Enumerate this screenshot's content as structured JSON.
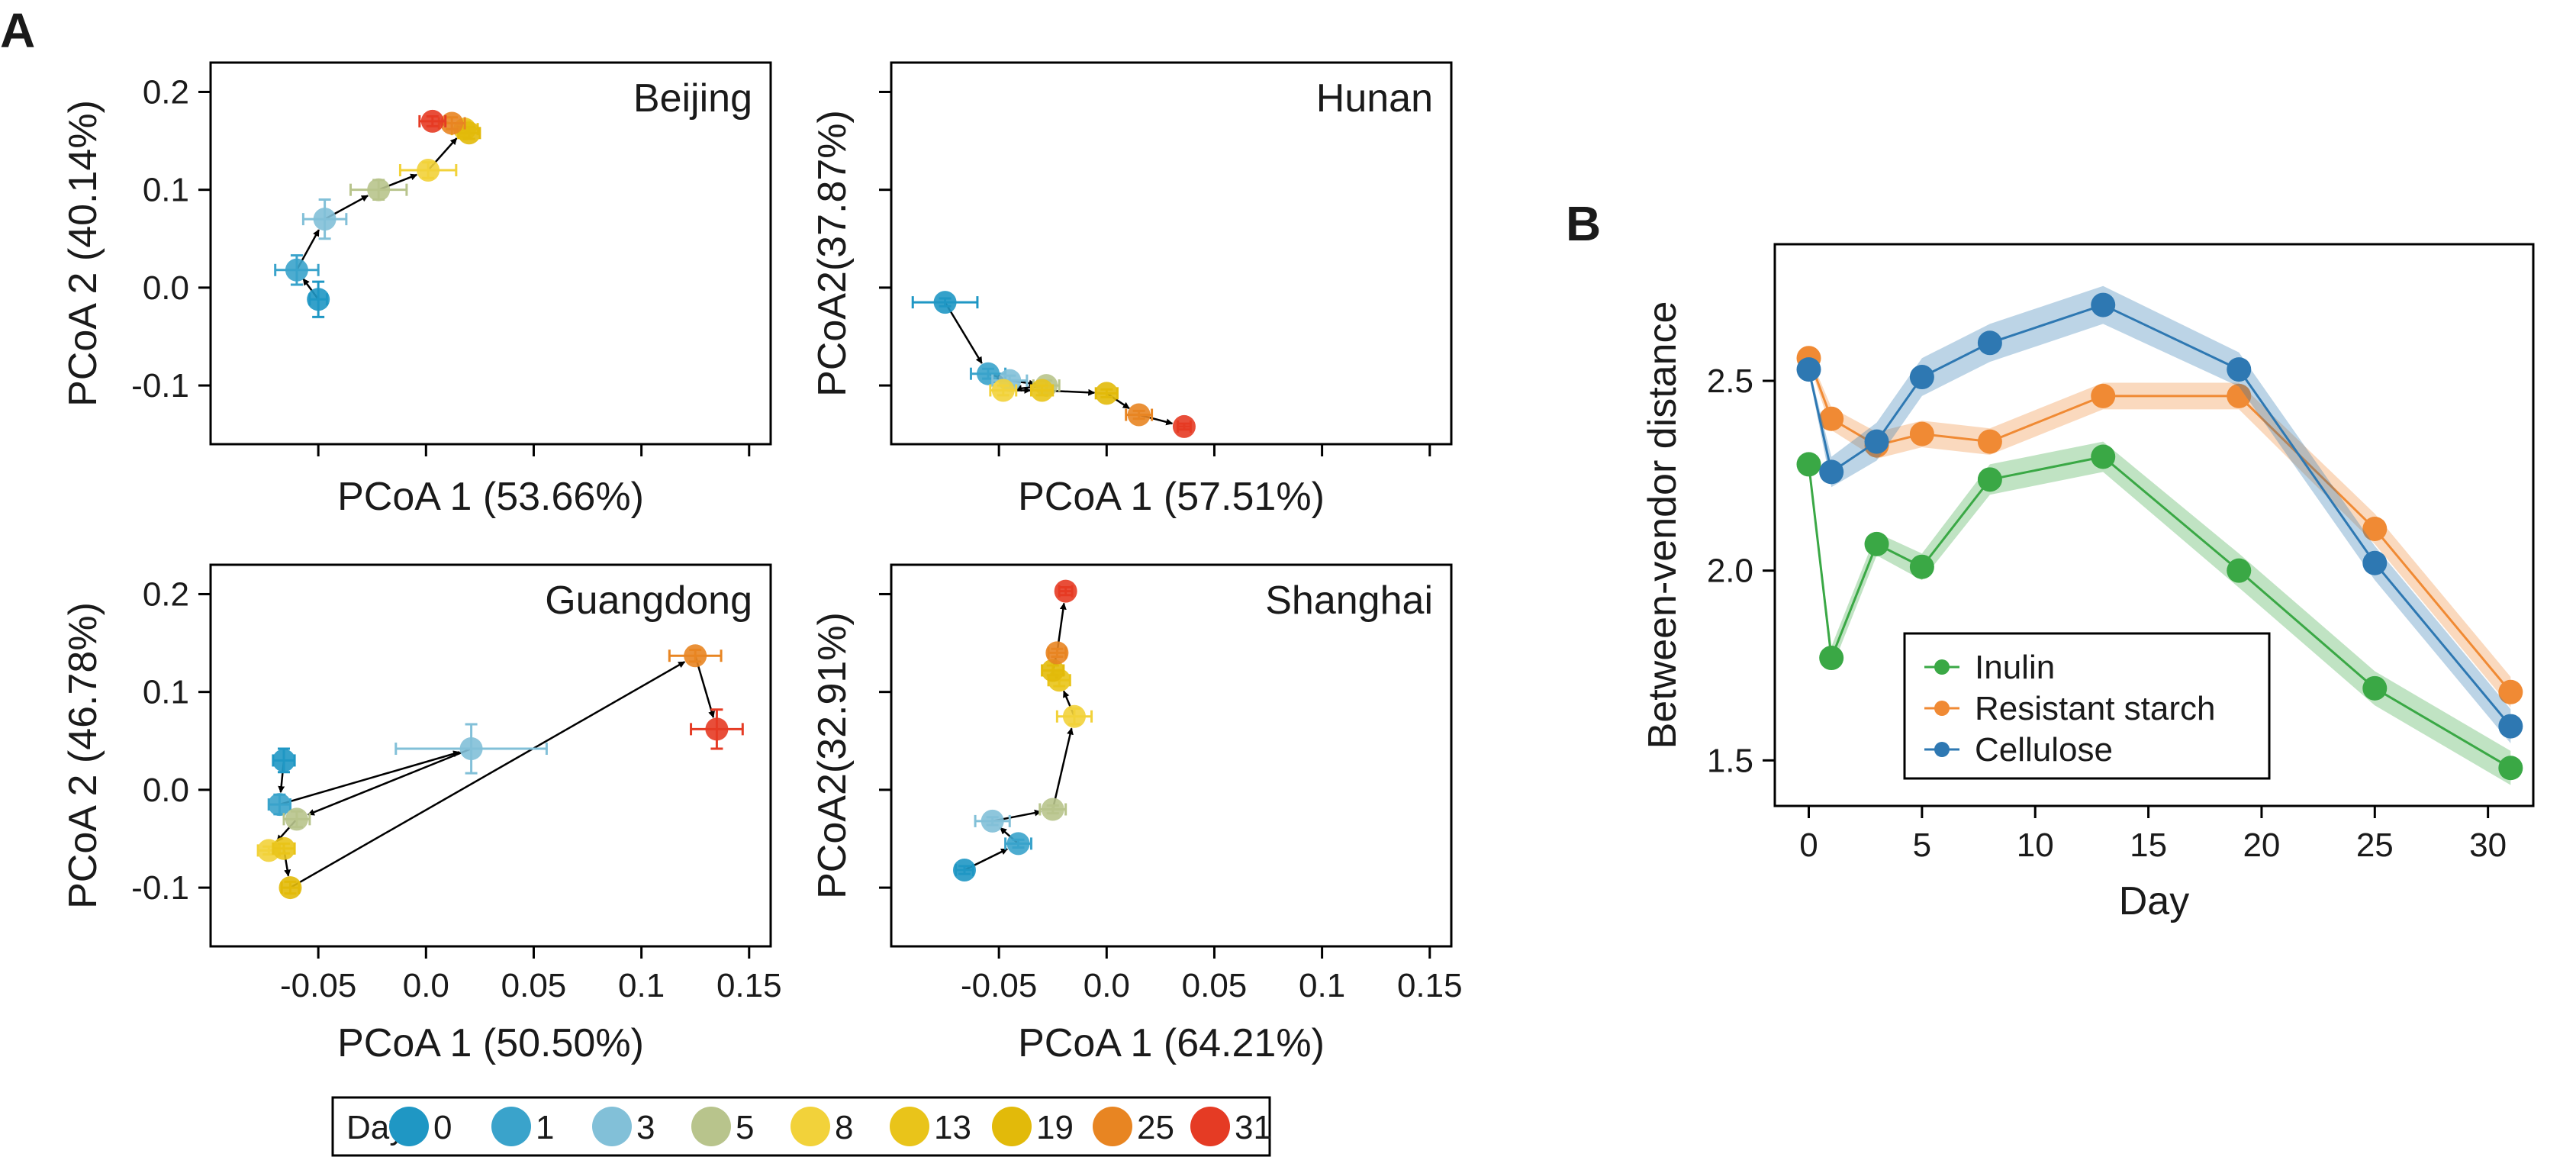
{
  "figure": {
    "panel_labels": [
      "A",
      "B"
    ]
  },
  "day_legend": {
    "title": "Day",
    "days": [
      0,
      1,
      3,
      5,
      8,
      13,
      19,
      25,
      31
    ],
    "labels": [
      "0",
      "1",
      "3",
      "5",
      "8",
      "13",
      "19",
      "25",
      "31"
    ],
    "colors": [
      "#1f97c4",
      "#3aa3cb",
      "#82c0d8",
      "#b8c48c",
      "#f2d23a",
      "#e9c41a",
      "#e2ba0a",
      "#e88522",
      "#e53b24"
    ]
  },
  "chart_data": [
    {
      "type": "scatter",
      "panel": "A",
      "title": "Beijing",
      "xlabel": "PCoA 1 (53.66%)",
      "ylabel": "PCoA 2 (40.14%)",
      "xlim": [
        -0.1,
        0.16
      ],
      "ylim": [
        -0.16,
        0.23
      ],
      "xticks": [
        -0.05,
        0,
        0.05,
        0.1,
        0.15
      ],
      "yticks": [
        -0.1,
        0.0,
        0.1,
        0.2
      ],
      "yticklabels": [
        "-0.1",
        "0.0",
        "0.1",
        "0.2"
      ],
      "show_xticklabels": false,
      "points": [
        {
          "day": 0,
          "x": -0.05,
          "y": -0.012,
          "xerr": 0.004,
          "yerr": 0.018
        },
        {
          "day": 1,
          "x": -0.06,
          "y": 0.018,
          "xerr": 0.01,
          "yerr": 0.015
        },
        {
          "day": 3,
          "x": -0.047,
          "y": 0.07,
          "xerr": 0.01,
          "yerr": 0.02
        },
        {
          "day": 5,
          "x": -0.022,
          "y": 0.1,
          "xerr": 0.013,
          "yerr": 0.01
        },
        {
          "day": 8,
          "x": 0.001,
          "y": 0.12,
          "xerr": 0.013,
          "yerr": 0.008
        },
        {
          "day": 13,
          "x": 0.018,
          "y": 0.162,
          "xerr": 0.006,
          "yerr": 0.008
        },
        {
          "day": 19,
          "x": 0.02,
          "y": 0.158,
          "xerr": 0.005,
          "yerr": 0.006
        },
        {
          "day": 25,
          "x": 0.012,
          "y": 0.168,
          "xerr": 0.006,
          "yerr": 0.006
        },
        {
          "day": 31,
          "x": 0.003,
          "y": 0.17,
          "xerr": 0.006,
          "yerr": 0.005
        }
      ]
    },
    {
      "type": "scatter",
      "panel": "A",
      "title": "Hunan",
      "xlabel": "PCoA 1 (57.51%)",
      "ylabel": "PCoA2(37.87%)",
      "xlim": [
        -0.1,
        0.16
      ],
      "ylim": [
        -0.16,
        0.23
      ],
      "xticks": [
        -0.05,
        0,
        0.05,
        0.1,
        0.15
      ],
      "yticks": [
        -0.1,
        0.0,
        0.1,
        0.2
      ],
      "show_xticklabels": false,
      "show_yticklabels": false,
      "points": [
        {
          "day": 0,
          "x": -0.075,
          "y": -0.015,
          "xerr": 0.015,
          "yerr": 0.004
        },
        {
          "day": 1,
          "x": -0.055,
          "y": -0.088,
          "xerr": 0.008,
          "yerr": 0.005
        },
        {
          "day": 3,
          "x": -0.045,
          "y": -0.095,
          "xerr": 0.008,
          "yerr": 0.005
        },
        {
          "day": 5,
          "x": -0.028,
          "y": -0.1,
          "xerr": 0.006,
          "yerr": 0.005
        },
        {
          "day": 8,
          "x": -0.048,
          "y": -0.105,
          "xerr": 0.006,
          "yerr": 0.005
        },
        {
          "day": 13,
          "x": -0.03,
          "y": -0.105,
          "xerr": 0.005,
          "yerr": 0.005
        },
        {
          "day": 19,
          "x": 0.0,
          "y": -0.108,
          "xerr": 0.005,
          "yerr": 0.004
        },
        {
          "day": 25,
          "x": 0.015,
          "y": -0.13,
          "xerr": 0.006,
          "yerr": 0.004
        },
        {
          "day": 31,
          "x": 0.036,
          "y": -0.142,
          "xerr": 0.003,
          "yerr": 0.003
        }
      ]
    },
    {
      "type": "scatter",
      "panel": "A",
      "title": "Guangdong",
      "xlabel": "PCoA 1 (50.50%)",
      "ylabel": "PCoA 2 (46.78%)",
      "xlim": [
        -0.1,
        0.16
      ],
      "ylim": [
        -0.16,
        0.23
      ],
      "xticks": [
        -0.05,
        0,
        0.05,
        0.1,
        0.15
      ],
      "xticklabels": [
        "-0.05",
        "0.0",
        "0.05",
        "0.1",
        "0.15"
      ],
      "yticks": [
        -0.1,
        0.0,
        0.1,
        0.2
      ],
      "yticklabels": [
        "-0.1",
        "0.0",
        "0.1",
        "0.2"
      ],
      "points": [
        {
          "day": 0,
          "x": -0.066,
          "y": 0.03,
          "xerr": 0.005,
          "yerr": 0.012
        },
        {
          "day": 1,
          "x": -0.068,
          "y": -0.015,
          "xerr": 0.005,
          "yerr": 0.01
        },
        {
          "day": 3,
          "x": 0.021,
          "y": 0.042,
          "xerr": 0.035,
          "yerr": 0.025
        },
        {
          "day": 5,
          "x": -0.06,
          "y": -0.03,
          "xerr": 0.006,
          "yerr": 0.008
        },
        {
          "day": 8,
          "x": -0.073,
          "y": -0.062,
          "xerr": 0.005,
          "yerr": 0.004
        },
        {
          "day": 13,
          "x": -0.066,
          "y": -0.06,
          "xerr": 0.005,
          "yerr": 0.005
        },
        {
          "day": 19,
          "x": -0.063,
          "y": -0.1,
          "xerr": 0.004,
          "yerr": 0.006
        },
        {
          "day": 25,
          "x": 0.125,
          "y": 0.137,
          "xerr": 0.012,
          "yerr": 0.006
        },
        {
          "day": 31,
          "x": 0.135,
          "y": 0.062,
          "xerr": 0.012,
          "yerr": 0.02
        }
      ]
    },
    {
      "type": "scatter",
      "panel": "A",
      "title": "Shanghai",
      "xlabel": "PCoA 1 (64.21%)",
      "ylabel": "PCoA2(32.91%)",
      "xlim": [
        -0.1,
        0.16
      ],
      "ylim": [
        -0.16,
        0.23
      ],
      "xticks": [
        -0.05,
        0,
        0.05,
        0.1,
        0.15
      ],
      "xticklabels": [
        "-0.05",
        "0.0",
        "0.05",
        "0.1",
        "0.15"
      ],
      "yticks": [
        -0.1,
        0.0,
        0.1,
        0.2
      ],
      "show_yticklabels": false,
      "points": [
        {
          "day": 0,
          "x": -0.066,
          "y": -0.082,
          "xerr": 0.004,
          "yerr": 0.004
        },
        {
          "day": 1,
          "x": -0.041,
          "y": -0.055,
          "xerr": 0.006,
          "yerr": 0.004
        },
        {
          "day": 3,
          "x": -0.053,
          "y": -0.032,
          "xerr": 0.008,
          "yerr": 0.004
        },
        {
          "day": 5,
          "x": -0.025,
          "y": -0.02,
          "xerr": 0.006,
          "yerr": 0.004
        },
        {
          "day": 8,
          "x": -0.015,
          "y": 0.075,
          "xerr": 0.008,
          "yerr": 0.008
        },
        {
          "day": 13,
          "x": -0.022,
          "y": 0.112,
          "xerr": 0.005,
          "yerr": 0.006
        },
        {
          "day": 19,
          "x": -0.025,
          "y": 0.122,
          "xerr": 0.005,
          "yerr": 0.005
        },
        {
          "day": 25,
          "x": -0.023,
          "y": 0.14,
          "xerr": 0.004,
          "yerr": 0.004
        },
        {
          "day": 31,
          "x": -0.019,
          "y": 0.203,
          "xerr": 0.003,
          "yerr": 0.004
        }
      ]
    },
    {
      "type": "line",
      "panel": "B",
      "xlabel": "Day",
      "ylabel": "Between-vendor distance",
      "xlim": [
        -1.5,
        32
      ],
      "ylim": [
        1.38,
        2.86
      ],
      "xticks": [
        0,
        5,
        10,
        15,
        20,
        25,
        30
      ],
      "yticks": [
        1.5,
        2.0,
        2.5
      ],
      "yticklabels": [
        "1.5",
        "2.0",
        "2.5"
      ],
      "legend": "bottom-left",
      "x": [
        0,
        1,
        3,
        5,
        8,
        13,
        19,
        25,
        31
      ],
      "series": [
        {
          "name": "Inulin",
          "color": "#3aa845",
          "values": [
            2.28,
            1.77,
            2.07,
            2.01,
            2.24,
            2.3,
            2.0,
            1.69,
            1.48
          ],
          "band": [
            0.01,
            0.03,
            0.03,
            0.035,
            0.04,
            0.04,
            0.045,
            0.045,
            0.045
          ]
        },
        {
          "name": "Resistant starch",
          "color": "#f08a34",
          "values": [
            2.56,
            2.4,
            2.33,
            2.36,
            2.34,
            2.46,
            2.46,
            2.11,
            1.68
          ],
          "band": [
            0.01,
            0.03,
            0.035,
            0.035,
            0.035,
            0.035,
            0.035,
            0.04,
            0.04
          ]
        },
        {
          "name": "Cellulose",
          "color": "#2e78b2",
          "values": [
            2.53,
            2.26,
            2.34,
            2.51,
            2.6,
            2.7,
            2.53,
            2.02,
            1.59
          ],
          "band": [
            0.01,
            0.04,
            0.05,
            0.05,
            0.05,
            0.05,
            0.045,
            0.045,
            0.045
          ]
        }
      ]
    }
  ]
}
